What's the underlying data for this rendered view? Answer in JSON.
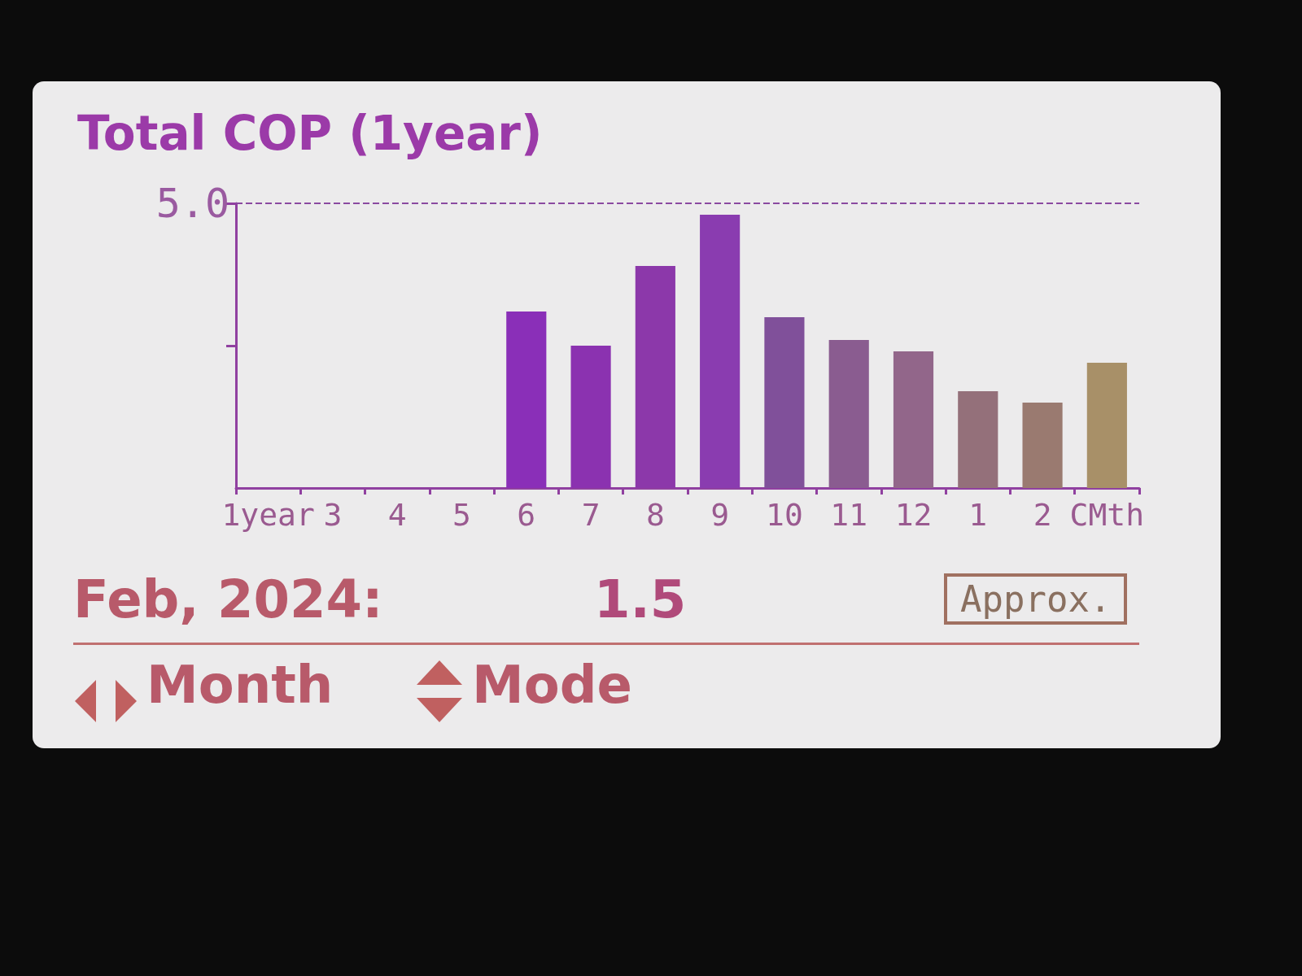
{
  "chart_data": {
    "type": "bar",
    "title": "Total COP (1year)",
    "categories": [
      "1year",
      "3",
      "4",
      "5",
      "6",
      "7",
      "8",
      "9",
      "10",
      "11",
      "12",
      "1",
      "2",
      "CMth"
    ],
    "values": [
      null,
      null,
      null,
      null,
      3.1,
      2.5,
      3.9,
      4.8,
      3.0,
      2.6,
      2.4,
      1.7,
      1.5,
      2.2
    ],
    "colors": [
      null,
      null,
      null,
      null,
      "#8a2fb8",
      "#8b32b0",
      "#8c38aa",
      "#8a3cb0",
      "#80509a",
      "#8a5c90",
      "#92668a",
      "#94707a",
      "#9a7a70",
      "#a89068"
    ],
    "ylim": [
      0,
      5
    ],
    "yticks": [
      {
        "value": 2.5,
        "label": null
      },
      {
        "value": 5,
        "label": "5.0"
      }
    ],
    "ref_lines": [
      {
        "axis": "y",
        "value": 5,
        "color": "#8a4aa0",
        "line_style": "dashed"
      }
    ],
    "annotations": [
      "Feb, 2024:",
      "1.5",
      "Approx.",
      "Month",
      "Mode"
    ]
  }
}
